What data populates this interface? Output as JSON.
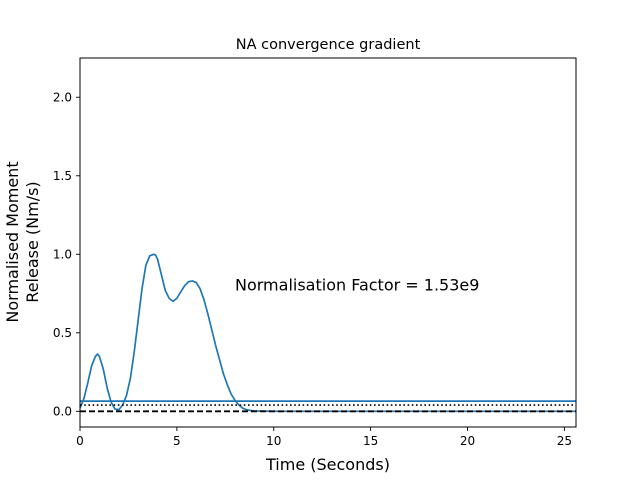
{
  "chart_data": {
    "type": "line",
    "title": "NA convergence gradient",
    "xlabel": "Time (Seconds)",
    "ylabel_lines": [
      "Normalised Moment",
      "Release (Nm/s)"
    ],
    "annotation": "Normalisation Factor = 1.53e9",
    "annotation_anchor": {
      "x": 8.0,
      "y": 0.8
    },
    "xlim": [
      0,
      25.6
    ],
    "ylim": [
      -0.1,
      2.25
    ],
    "xticks": [
      0,
      5,
      10,
      15,
      20,
      25
    ],
    "xtick_labels": [
      "0",
      "5",
      "10",
      "15",
      "20",
      "25"
    ],
    "yticks": [
      0.0,
      0.5,
      1.0,
      1.5,
      2.0
    ],
    "ytick_labels": [
      "0.0",
      "0.5",
      "1.0",
      "1.5",
      "2.0"
    ],
    "grid": false,
    "series": [
      {
        "style": "solid",
        "color": "#1f77b4",
        "x": [
          0.0,
          0.2,
          0.4,
          0.6,
          0.8,
          0.9,
          1.0,
          1.2,
          1.4,
          1.6,
          1.8,
          2.0,
          2.2,
          2.4,
          2.6,
          2.8,
          3.0,
          3.2,
          3.4,
          3.6,
          3.8,
          3.9,
          4.0,
          4.2,
          4.4,
          4.6,
          4.8,
          5.0,
          5.2,
          5.4,
          5.6,
          5.8,
          6.0,
          6.2,
          6.4,
          6.6,
          6.8,
          7.0,
          7.2,
          7.4,
          7.6,
          7.8,
          8.0,
          8.2,
          8.4,
          8.6,
          8.8,
          9.0,
          9.4,
          9.8,
          10.5,
          12.0,
          15.0,
          20.0,
          25.6
        ],
        "y": [
          0.02,
          0.08,
          0.18,
          0.29,
          0.35,
          0.365,
          0.35,
          0.27,
          0.15,
          0.06,
          0.015,
          0.01,
          0.04,
          0.1,
          0.21,
          0.38,
          0.58,
          0.78,
          0.93,
          0.99,
          1.0,
          0.995,
          0.97,
          0.87,
          0.77,
          0.72,
          0.7,
          0.72,
          0.76,
          0.8,
          0.825,
          0.83,
          0.82,
          0.78,
          0.71,
          0.62,
          0.52,
          0.42,
          0.33,
          0.24,
          0.17,
          0.11,
          0.07,
          0.04,
          0.02,
          0.01,
          0.005,
          0.002,
          0.001,
          0.0005,
          0.0,
          0.0,
          0.0,
          0.0,
          0.0
        ]
      },
      {
        "style": "solid-hline",
        "color": "#1f77b4",
        "y": 0.065
      },
      {
        "style": "dotted-hline",
        "color": "#000000",
        "y": 0.04
      },
      {
        "style": "dashed-hline",
        "color": "#000000",
        "y": 0.0
      }
    ]
  }
}
